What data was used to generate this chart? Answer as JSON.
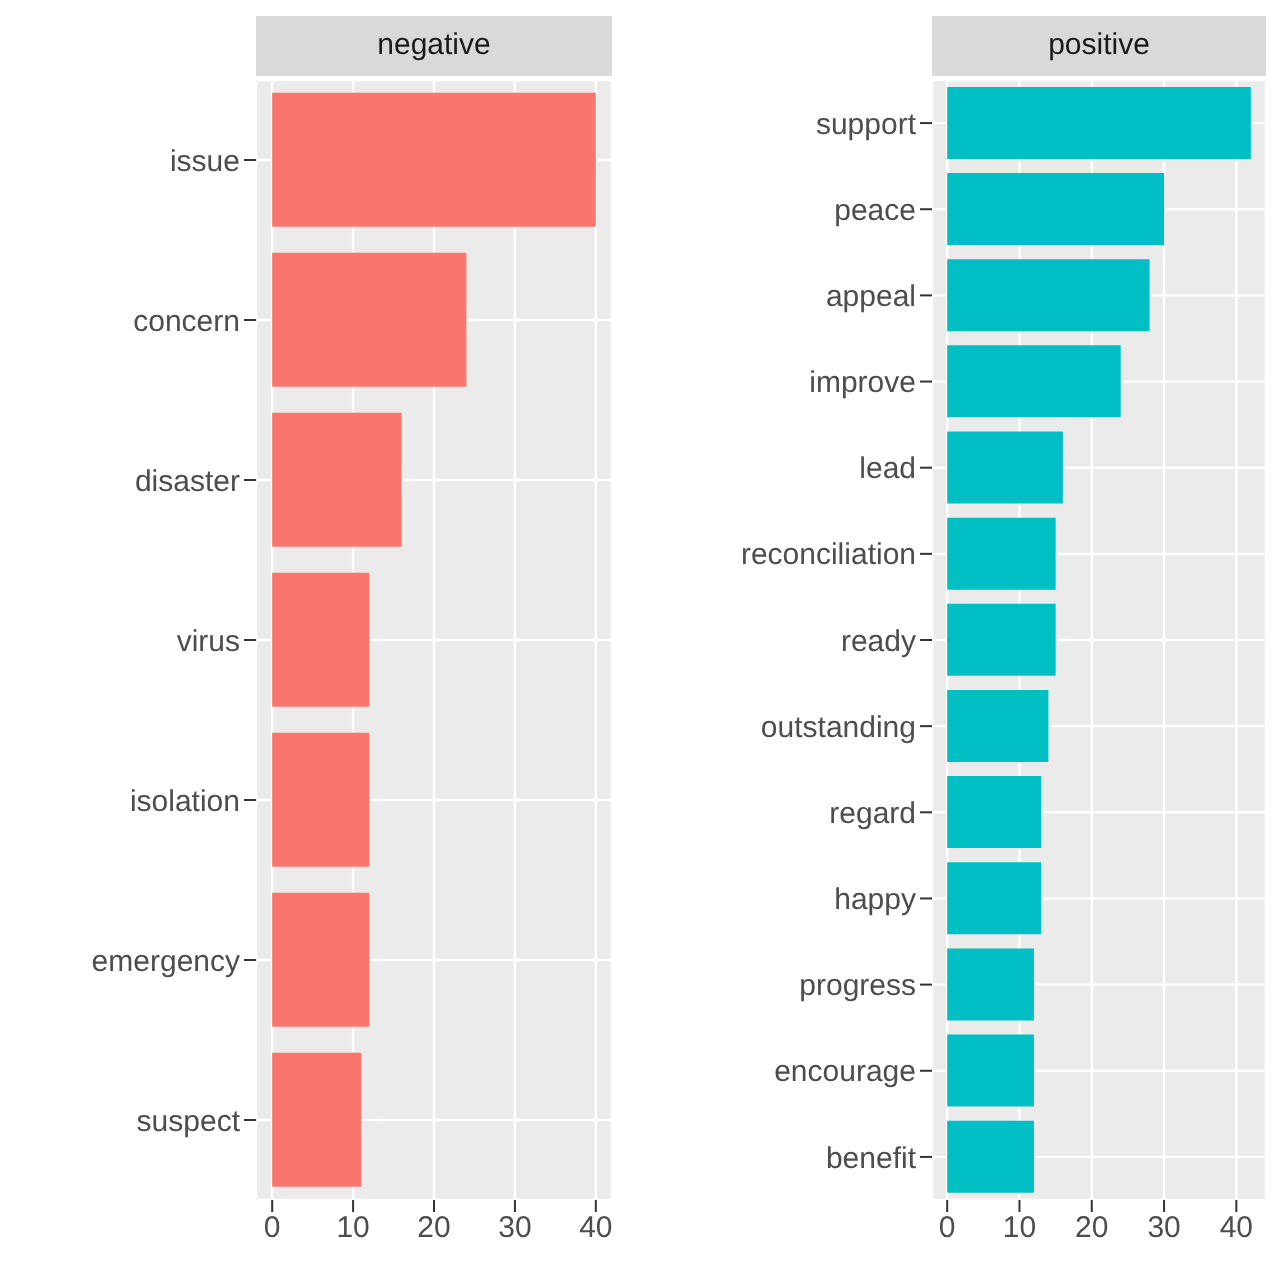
{
  "chart_data": [
    {
      "type": "bar",
      "orientation": "horizontal",
      "title": "negative",
      "categories": [
        "issue",
        "concern",
        "disaster",
        "virus",
        "isolation",
        "emergency",
        "suspect"
      ],
      "values": [
        40,
        24,
        16,
        12,
        12,
        12,
        11
      ],
      "color": "#f8766d",
      "xlim": [
        -2,
        42
      ],
      "xticks": [
        0,
        10,
        20,
        30,
        40
      ],
      "grid": true
    },
    {
      "type": "bar",
      "orientation": "horizontal",
      "title": "positive",
      "categories": [
        "support",
        "peace",
        "appeal",
        "improve",
        "lead",
        "reconciliation",
        "ready",
        "outstanding",
        "regard",
        "happy",
        "progress",
        "encourage",
        "benefit"
      ],
      "values": [
        42,
        30,
        28,
        24,
        16,
        15,
        15,
        14,
        13,
        13,
        12,
        12,
        12
      ],
      "color": "#00bfc4",
      "xlim": [
        -2.1,
        44.1
      ],
      "xticks": [
        0,
        10,
        20,
        30,
        40
      ],
      "grid": true
    }
  ]
}
